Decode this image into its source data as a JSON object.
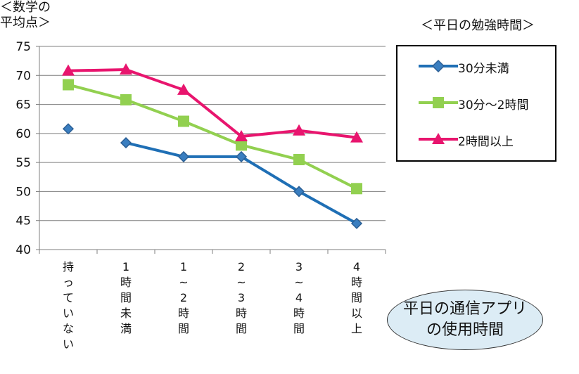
{
  "ylabel": [
    "＜数学の",
    "平均点＞"
  ],
  "legend_title": "＜平日の勉強時間＞",
  "note": [
    "平日の通信アプリ",
    "の使用時間"
  ],
  "colors": {
    "s1": "#1f6fb5",
    "s2": "#92d050",
    "s3": "#e8156e"
  },
  "chart_data": {
    "type": "line",
    "categories": [
      [
        "持",
        "っ",
        "て",
        "い",
        "な",
        "い"
      ],
      [
        "1",
        "時",
        "間",
        "未",
        "満"
      ],
      [
        "1",
        "~",
        "2",
        "時",
        "間"
      ],
      [
        "2",
        "~",
        "3",
        "時",
        "間"
      ],
      [
        "3",
        "~",
        "4",
        "時",
        "間"
      ],
      [
        "4",
        "時",
        "間",
        "以",
        "上"
      ]
    ],
    "ylim": [
      40,
      75
    ],
    "yticks": [
      40,
      45,
      50,
      55,
      60,
      65,
      70,
      75
    ],
    "grid": true,
    "legend": "right",
    "series": [
      {
        "name": "30分未満",
        "marker": "diamond",
        "values": [
          60.8,
          58.4,
          56.0,
          56.0,
          50.0,
          44.5
        ]
      },
      {
        "name": "30分～2時間",
        "marker": "square",
        "values": [
          68.4,
          65.8,
          62.1,
          58.0,
          55.5,
          50.5
        ]
      },
      {
        "name": "2時間以上",
        "marker": "triangle",
        "values": [
          70.8,
          71.0,
          67.5,
          59.5,
          60.5,
          59.3
        ]
      }
    ]
  }
}
